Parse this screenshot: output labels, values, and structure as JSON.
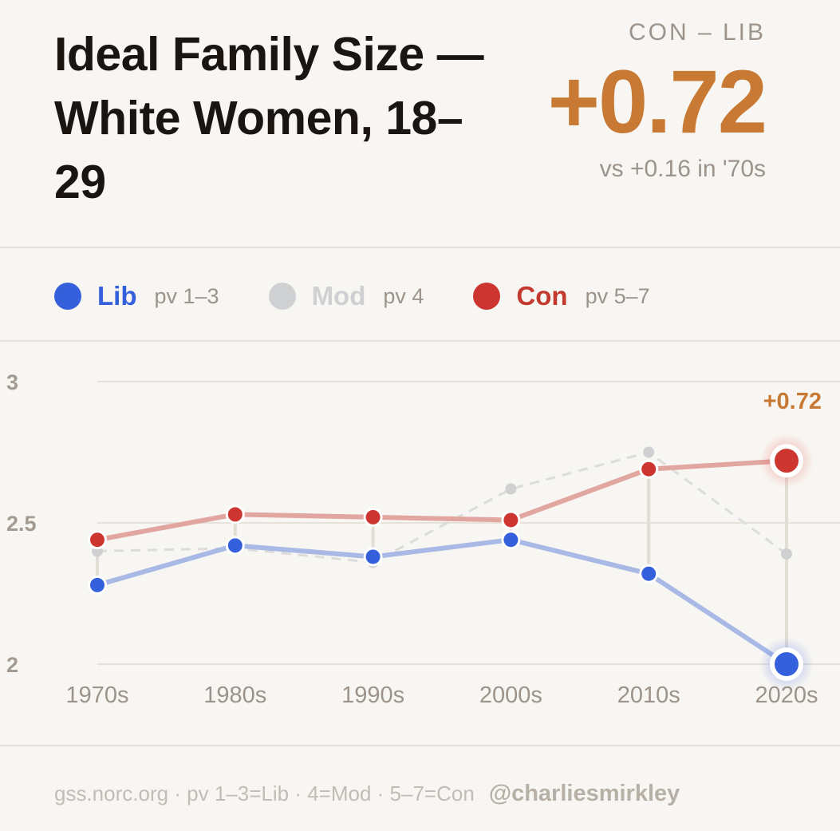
{
  "header": {
    "title": "Ideal Family Size — White Women, 18–29",
    "kicker": "CON – LIB",
    "big_value": "+0.72",
    "comparison": "vs +0.16 in '70s"
  },
  "legend": [
    {
      "name": "Lib",
      "sub": "pv 1–3",
      "color": "#3560dc",
      "name_color": "#3560dc"
    },
    {
      "name": "Mod",
      "sub": "pv 4",
      "color": "#cfd0d2",
      "name_color": "#cfd0d2"
    },
    {
      "name": "Con",
      "sub": "pv 5–7",
      "color": "#cc3530",
      "name_color": "#c23a2f"
    }
  ],
  "chart_data": {
    "type": "line",
    "categories": [
      "1970s",
      "1980s",
      "1990s",
      "2000s",
      "2010s",
      "2020s"
    ],
    "series": [
      {
        "name": "Lib",
        "values": [
          2.28,
          2.42,
          2.38,
          2.44,
          2.32,
          2.0
        ],
        "color": "#3560dc",
        "line_color": "#a8b9e6"
      },
      {
        "name": "Mod",
        "values": [
          2.4,
          2.41,
          2.36,
          2.62,
          2.75,
          2.39
        ],
        "color": "#cfd0d2",
        "dashed": true
      },
      {
        "name": "Con",
        "values": [
          2.44,
          2.53,
          2.52,
          2.51,
          2.69,
          2.72
        ],
        "color": "#cc3530",
        "line_color": "#e2a6a0"
      }
    ],
    "yticks": [
      "3",
      "2.5",
      "2"
    ],
    "ylim": [
      2,
      3
    ],
    "gap_annotation": "+0.72",
    "gap_color": "#c87a34",
    "grid": true
  },
  "footer": {
    "source": "gss.norc.org · pv 1–3=Lib · 4=Mod · 5–7=Con",
    "handle": "@charliesmirkley"
  }
}
